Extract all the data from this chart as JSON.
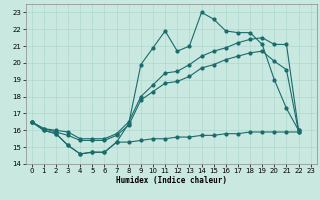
{
  "xlabel": "Humidex (Indice chaleur)",
  "bg_color": "#c8e8e0",
  "grid_color": "#b0d8d0",
  "line_color": "#1a6b6b",
  "xlim": [
    -0.5,
    23.5
  ],
  "ylim": [
    14,
    23.5
  ],
  "yticks": [
    14,
    15,
    16,
    17,
    18,
    19,
    20,
    21,
    22,
    23
  ],
  "xticks": [
    0,
    1,
    2,
    3,
    4,
    5,
    6,
    7,
    8,
    9,
    10,
    11,
    12,
    13,
    14,
    15,
    16,
    17,
    18,
    19,
    20,
    21,
    22,
    23
  ],
  "line1_x": [
    0,
    1,
    2,
    3,
    4,
    5,
    6,
    7,
    8,
    9,
    10,
    11,
    12,
    13,
    14,
    15,
    16,
    17,
    18,
    19,
    20,
    21,
    22
  ],
  "line1_y": [
    16.5,
    16.0,
    15.8,
    15.1,
    14.6,
    14.7,
    14.7,
    15.3,
    16.4,
    19.9,
    20.9,
    21.9,
    20.7,
    21.0,
    23.0,
    22.6,
    21.9,
    21.8,
    21.8,
    21.1,
    19.0,
    17.3,
    16.0
  ],
  "line2_x": [
    0,
    1,
    2,
    3,
    4,
    5,
    6,
    7,
    8,
    9,
    10,
    11,
    12,
    13,
    14,
    15,
    16,
    17,
    18,
    19,
    20,
    21,
    22
  ],
  "line2_y": [
    16.5,
    16.1,
    16.0,
    15.9,
    15.5,
    15.5,
    15.5,
    15.8,
    16.5,
    18.0,
    18.7,
    19.4,
    19.5,
    19.9,
    20.4,
    20.7,
    20.9,
    21.2,
    21.4,
    21.5,
    21.1,
    21.1,
    16.0
  ],
  "line3_x": [
    0,
    1,
    2,
    3,
    4,
    5,
    6,
    7,
    8,
    9,
    10,
    11,
    12,
    13,
    14,
    15,
    16,
    17,
    18,
    19,
    20,
    21,
    22
  ],
  "line3_y": [
    16.5,
    16.1,
    15.9,
    15.7,
    15.4,
    15.4,
    15.4,
    15.7,
    16.3,
    17.8,
    18.3,
    18.8,
    18.9,
    19.2,
    19.7,
    19.9,
    20.2,
    20.4,
    20.6,
    20.7,
    20.1,
    19.6,
    15.9
  ],
  "line4_x": [
    0,
    1,
    2,
    3,
    4,
    5,
    6,
    7,
    8,
    9,
    10,
    11,
    12,
    13,
    14,
    15,
    16,
    17,
    18,
    19,
    20,
    21,
    22
  ],
  "line4_y": [
    16.5,
    16.0,
    15.8,
    15.1,
    14.6,
    14.7,
    14.7,
    15.3,
    15.3,
    15.4,
    15.5,
    15.5,
    15.6,
    15.6,
    15.7,
    15.7,
    15.8,
    15.8,
    15.9,
    15.9,
    15.9,
    15.9,
    15.9
  ]
}
